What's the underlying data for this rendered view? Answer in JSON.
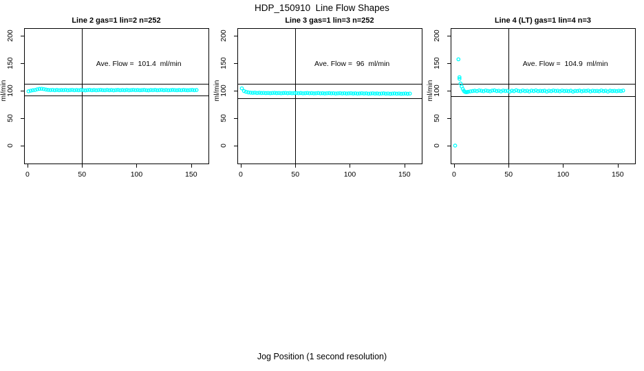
{
  "figure": {
    "title": "HDP_150910  Line Flow Shapes",
    "xlabel": "Jog Position (1 second resolution)",
    "ylabel": "ml/min",
    "background_color": "#FFFFFF",
    "point_color": "#00FFFF",
    "line_color": "#000000"
  },
  "chart_data": {
    "type": "scatter",
    "title": "HDP_150910  Line Flow Shapes",
    "xlabel": "Jog Position (1 second resolution)",
    "ylabel": "ml/min",
    "marker": "open-circle",
    "point_color": "#00FFFF",
    "grid": false,
    "xlim": [
      -3.1,
      165.9
    ],
    "ylim": [
      -32.1,
      214.1
    ],
    "xticks": [
      0,
      50,
      100,
      150
    ],
    "yticks": [
      0,
      50,
      100,
      150,
      200
    ],
    "panels": [
      {
        "title": "Line 2 gas=1 lin=2 n=252",
        "annotation": "Ave. Flow =  101.4  ml/min",
        "ave_flow": 101.4,
        "n": 252,
        "vline_x": 50,
        "hlines": [
          112.5,
          91.5
        ],
        "x": [
          1,
          3,
          5,
          7,
          9,
          11,
          13,
          15,
          17,
          19,
          21,
          23,
          25,
          27,
          29,
          31,
          33,
          35,
          37,
          39,
          41,
          43,
          45,
          47,
          49,
          51,
          53,
          55,
          57,
          59,
          61,
          63,
          65,
          67,
          69,
          71,
          73,
          75,
          77,
          79,
          81,
          83,
          85,
          87,
          89,
          91,
          93,
          95,
          97,
          99,
          101,
          103,
          105,
          107,
          109,
          111,
          113,
          115,
          117,
          119,
          121,
          123,
          125,
          127,
          129,
          131,
          133,
          135,
          137,
          139,
          141,
          143,
          145,
          147,
          149,
          151,
          153,
          155
        ],
        "y": [
          99.2,
          100.4,
          101.1,
          101.6,
          102.9,
          103.6,
          103.9,
          103.3,
          102.4,
          101.8,
          101.5,
          101.9,
          101.3,
          101.7,
          101.2,
          101.6,
          101.4,
          101.8,
          101.1,
          101.5,
          101.9,
          101.3,
          101.6,
          101.2,
          101.7,
          101.4,
          101.0,
          101.5,
          101.8,
          101.3,
          101.6,
          101.1,
          101.5,
          101.9,
          101.4,
          101.2,
          101.7,
          101.3,
          101.6,
          101.0,
          101.5,
          101.8,
          101.2,
          101.6,
          101.3,
          101.7,
          101.1,
          101.5,
          101.9,
          101.4,
          101.6,
          101.2,
          101.5,
          101.8,
          101.3,
          101.0,
          101.6,
          101.4,
          101.7,
          101.2,
          101.5,
          101.9,
          101.3,
          101.6,
          101.1,
          101.4,
          101.8,
          101.5,
          101.2,
          101.6,
          101.3,
          101.7,
          101.4,
          101.1,
          101.5,
          101.8,
          101.3,
          101.6
        ]
      },
      {
        "title": "Line 3 gas=1 lin=3 n=252",
        "annotation": "Ave. Flow =  96  ml/min",
        "ave_flow": 96,
        "n": 252,
        "vline_x": 50,
        "hlines": [
          112.5,
          86.5
        ],
        "x": [
          1,
          3,
          5,
          7,
          9,
          11,
          13,
          15,
          17,
          19,
          21,
          23,
          25,
          27,
          29,
          31,
          33,
          35,
          37,
          39,
          41,
          43,
          45,
          47,
          49,
          51,
          53,
          55,
          57,
          59,
          61,
          63,
          65,
          67,
          69,
          71,
          73,
          75,
          77,
          79,
          81,
          83,
          85,
          87,
          89,
          91,
          93,
          95,
          97,
          99,
          101,
          103,
          105,
          107,
          109,
          111,
          113,
          115,
          117,
          119,
          121,
          123,
          125,
          127,
          129,
          131,
          133,
          135,
          137,
          139,
          141,
          143,
          145,
          147,
          149,
          151,
          153,
          155
        ],
        "y": [
          104.6,
          99.8,
          98.2,
          97.3,
          96.8,
          96.5,
          96.9,
          96.3,
          96.6,
          96.1,
          96.4,
          96.0,
          96.3,
          95.9,
          96.2,
          96.5,
          96.0,
          96.3,
          95.8,
          96.1,
          96.4,
          95.9,
          96.2,
          95.7,
          96.0,
          96.3,
          95.8,
          96.1,
          95.6,
          95.9,
          96.2,
          95.7,
          96.0,
          95.5,
          95.8,
          96.1,
          95.6,
          95.9,
          95.4,
          95.7,
          96.0,
          95.5,
          95.8,
          95.3,
          95.6,
          95.9,
          95.4,
          95.7,
          95.2,
          95.5,
          95.8,
          95.3,
          95.6,
          95.1,
          95.4,
          95.7,
          95.2,
          95.5,
          95.0,
          95.3,
          95.6,
          95.1,
          95.4,
          94.9,
          95.2,
          95.5,
          95.0,
          95.3,
          94.8,
          95.1,
          95.4,
          94.9,
          95.2,
          94.7,
          95.0,
          95.3,
          94.8,
          95.1
        ]
      },
      {
        "title": "Line 4 (LT) gas=1 lin=4 n=3",
        "annotation": "Ave. Flow =  104.9  ml/min",
        "ave_flow": 104.9,
        "n": 3,
        "vline_x": 50,
        "hlines": [
          112.5,
          91.0
        ],
        "x": [
          1,
          4,
          5,
          5,
          6,
          7,
          8,
          9,
          10,
          11,
          12,
          13,
          15,
          17,
          19,
          21,
          23,
          25,
          27,
          29,
          31,
          33,
          35,
          37,
          39,
          41,
          43,
          45,
          47,
          49,
          51,
          53,
          55,
          57,
          59,
          61,
          63,
          65,
          67,
          69,
          71,
          73,
          75,
          77,
          79,
          81,
          83,
          85,
          87,
          89,
          91,
          93,
          95,
          97,
          99,
          101,
          103,
          105,
          107,
          109,
          111,
          113,
          115,
          117,
          119,
          121,
          123,
          125,
          127,
          129,
          131,
          133,
          135,
          137,
          139,
          141,
          143,
          145,
          147,
          149,
          151,
          153,
          155
        ],
        "y": [
          0.5,
          157.5,
          125.0,
          122.0,
          113.5,
          108.0,
          103.5,
          100.0,
          98.3,
          97.6,
          97.9,
          98.4,
          99.1,
          99.8,
          100.4,
          99.6,
          100.9,
          100.2,
          99.5,
          100.7,
          100.0,
          99.3,
          100.5,
          101.0,
          99.8,
          100.3,
          99.1,
          100.6,
          99.9,
          100.2,
          98.8,
          100.4,
          99.6,
          101.1,
          100.0,
          99.4,
          100.7,
          99.8,
          100.2,
          99.0,
          100.5,
          99.7,
          100.9,
          99.5,
          100.1,
          99.8,
          100.4,
          98.9,
          100.2,
          99.6,
          100.8,
          99.9,
          100.3,
          99.2,
          100.6,
          99.8,
          100.1,
          99.5,
          100.4,
          98.8,
          100.0,
          99.7,
          100.5,
          99.3,
          100.2,
          99.9,
          100.6,
          99.1,
          100.3,
          99.8,
          100.0,
          99.4,
          100.7,
          99.6,
          100.2,
          98.9,
          100.4,
          99.7,
          100.1,
          99.5,
          100.3,
          99.8,
          100.6
        ]
      }
    ]
  }
}
